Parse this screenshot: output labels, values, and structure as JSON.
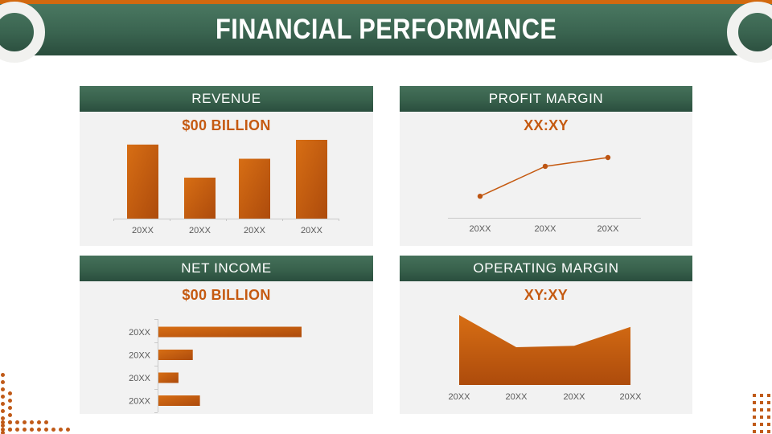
{
  "header": {
    "title": "FINANCIAL PERFORMANCE"
  },
  "cards": [
    {
      "id": "revenue",
      "title": "REVENUE",
      "subtitle": "$00 BILLION"
    },
    {
      "id": "profit-margin",
      "title": "PROFIT MARGIN",
      "subtitle": "XX:XY"
    },
    {
      "id": "net-income",
      "title": "NET INCOME",
      "subtitle": "$00 BILLION"
    },
    {
      "id": "operating-margin",
      "title": "OPERATING MARGIN",
      "subtitle": "XY:XY"
    }
  ],
  "chart_data": [
    {
      "id": "revenue",
      "type": "bar",
      "title": "REVENUE",
      "subtitle": "$00 BILLION",
      "categories": [
        "20XX",
        "20XX",
        "20XX",
        "20XX"
      ],
      "values": [
        94,
        52,
        76,
        100
      ],
      "ylim": [
        0,
        100
      ],
      "grid": false,
      "legend": false,
      "xlabel": "",
      "ylabel": ""
    },
    {
      "id": "profit-margin",
      "type": "line",
      "title": "PROFIT MARGIN",
      "subtitle": "XX:XY",
      "categories": [
        "20XX",
        "20XX",
        "20XX"
      ],
      "values": [
        34,
        85,
        100
      ],
      "ylim": [
        0,
        100
      ],
      "grid": false,
      "legend": false,
      "markers": true,
      "xlabel": "",
      "ylabel": ""
    },
    {
      "id": "net-income",
      "type": "bar",
      "orientation": "horizontal",
      "title": "NET INCOME",
      "subtitle": "$00 BILLION",
      "categories": [
        "20XX",
        "20XX",
        "20XX",
        "20XX"
      ],
      "values": [
        100,
        24,
        14,
        29
      ],
      "xlim": [
        0,
        100
      ],
      "grid": false,
      "legend": false,
      "xlabel": "",
      "ylabel": ""
    },
    {
      "id": "operating-margin",
      "type": "area",
      "title": "OPERATING MARGIN",
      "subtitle": "XY:XY",
      "categories": [
        "20XX",
        "20XX",
        "20XX",
        "20XX"
      ],
      "values": [
        100,
        54,
        56,
        83
      ],
      "ylim": [
        0,
        100
      ],
      "grid": false,
      "legend": false,
      "xlabel": "",
      "ylabel": ""
    }
  ],
  "colors": {
    "accent_orange": "#c55a11",
    "top_strip_orange": "#d2690f",
    "header_green_top": "#4a7861",
    "header_green_bottom": "#2a4d3d",
    "card_bg": "#f2f2f2",
    "axis_line": "#c9c9c9",
    "tick_label": "#595959",
    "bar_gradient_light": "#d76e14",
    "bar_gradient_dark": "#ad4b0c"
  }
}
